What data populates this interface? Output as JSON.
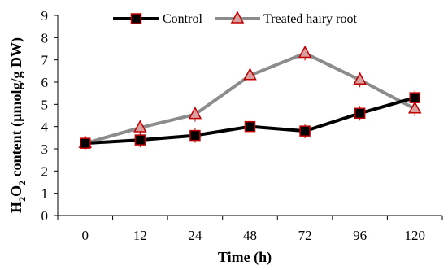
{
  "chart_data": {
    "type": "line",
    "categories": [
      "0",
      "12",
      "24",
      "48",
      "72",
      "96",
      "120"
    ],
    "series": [
      {
        "name": "Control",
        "values": [
          3.25,
          3.4,
          3.6,
          4.0,
          3.8,
          4.6,
          5.3
        ],
        "color": "#000000",
        "marker": "square",
        "marker_fill": "#000000",
        "marker_edge": "#c00000"
      },
      {
        "name": "Treated hairy root",
        "values": [
          3.25,
          3.95,
          4.55,
          6.3,
          7.3,
          6.1,
          4.8
        ],
        "color": "#8c8c8c",
        "marker": "triangle",
        "marker_fill": "#d9a0a0",
        "marker_edge": "#c00000"
      }
    ],
    "xlabel": "Time (h)",
    "ylabel": {
      "prefix": "H",
      "sub1": "2",
      "mid": "O",
      "sub2": "2",
      "suffix": " content (µmolg/g DW)"
    },
    "ylim": [
      0,
      9
    ],
    "yticks": [
      0,
      1,
      2,
      3,
      4,
      5,
      6,
      7,
      8,
      9
    ],
    "legend_position": "top",
    "grid": false
  }
}
